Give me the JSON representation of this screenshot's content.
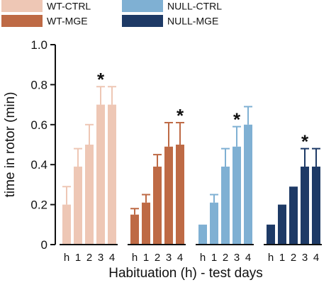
{
  "chart_data": {
    "type": "bar",
    "xlabel": "Habituation (h) - test days",
    "ylabel": "time in rotor (min)",
    "ylim": [
      0,
      1.0
    ],
    "yticks": [
      "0",
      "0.2",
      "0.4",
      "0.6",
      "0.8",
      "1.0"
    ],
    "categories": [
      "h",
      "1",
      "2",
      "3",
      "4"
    ],
    "legend_position": "top",
    "series": [
      {
        "name": "WT-CTRL",
        "color": "#eec7b5",
        "values": [
          0.2,
          0.39,
          0.5,
          0.7,
          0.7
        ],
        "errors": [
          0.09,
          0.09,
          0.1,
          0.09,
          0.09
        ],
        "significant_index": 3
      },
      {
        "name": "WT-MGE",
        "color": "#be6a45",
        "values": [
          0.15,
          0.21,
          0.39,
          0.49,
          0.5
        ],
        "errors": [
          0.03,
          0.04,
          0.06,
          0.12,
          0.11
        ],
        "significant_index": 4
      },
      {
        "name": "NULL-CTRL",
        "color": "#7fb0d3",
        "values": [
          0.1,
          0.21,
          0.39,
          0.49,
          0.6
        ],
        "errors": [
          0.0,
          0.04,
          0.09,
          0.1,
          0.09
        ],
        "significant_index": 3
      },
      {
        "name": "NULL-MGE",
        "color": "#1e3a66",
        "values": [
          0.1,
          0.2,
          0.29,
          0.39,
          0.39
        ],
        "errors": [
          0.0,
          0.0,
          0.0,
          0.09,
          0.09
        ],
        "significant_index": 3
      }
    ],
    "annotations": [
      "*",
      "*",
      "*",
      "*"
    ]
  }
}
